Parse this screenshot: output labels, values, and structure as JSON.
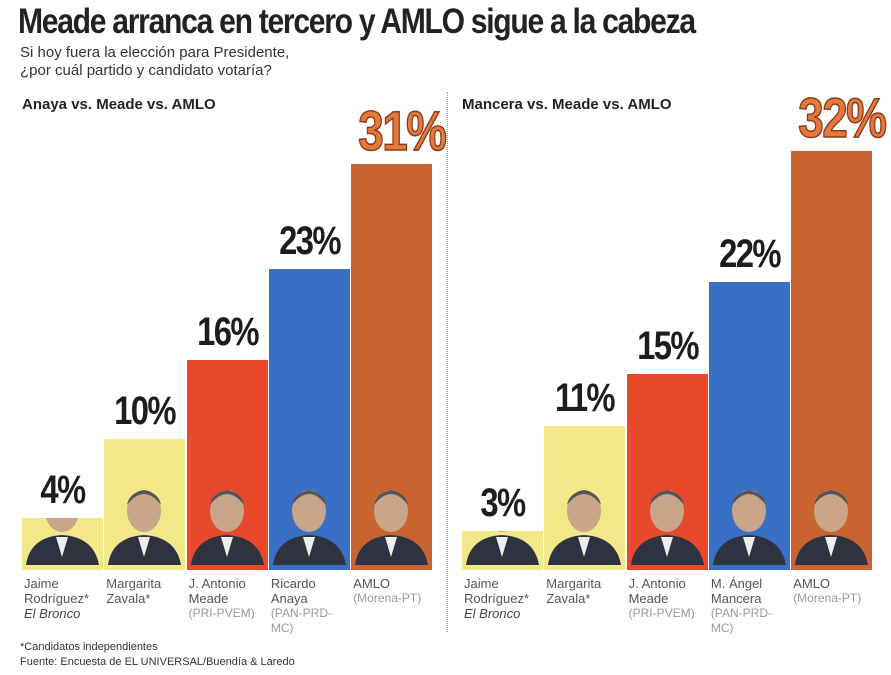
{
  "title": "Meade arranca en tercero y AMLO sigue a la cabeza",
  "subtitle": [
    "Si hoy fuera la elección para Presidente,",
    "¿por cuál partido y candidato votaría?"
  ],
  "footnote": "*Candidatos independientes",
  "source": "Fuente: Encuesta de EL UNIVERSAL/Buendía & Laredo",
  "chart_data": [
    {
      "type": "bar",
      "title": "Anaya vs. Meade vs. AMLO",
      "categories": [
        "Jaime Rodríguez*",
        "Margarita Zavala*",
        "J. Antonio Meade",
        "Ricardo Anaya",
        "AMLO"
      ],
      "parties": [
        "El Bronco",
        null,
        "(PRI-PVEM)",
        "(PAN-PRD-MC)",
        "(Morena-PT)"
      ],
      "values": [
        4,
        10,
        16,
        23,
        31
      ],
      "value_labels": [
        "4%",
        "10%",
        "16%",
        "23%",
        "31%"
      ],
      "colors": [
        "#f2e88a",
        "#f2e88a",
        "#e8482b",
        "#3a6fc6",
        "#c9632f"
      ]
    },
    {
      "type": "bar",
      "title": "Mancera vs. Meade vs. AMLO",
      "categories": [
        "Jaime Rodríguez*",
        "Margarita Zavala*",
        "J. Antonio Meade",
        "M. Ángel Mancera",
        "AMLO"
      ],
      "parties": [
        "El Bronco",
        null,
        "(PRI-PVEM)",
        "(PAN-PRD-MC)",
        "(Morena-PT)"
      ],
      "values": [
        3,
        11,
        15,
        22,
        32
      ],
      "value_labels": [
        "3%",
        "11%",
        "15%",
        "22%",
        "32%"
      ],
      "colors": [
        "#f2e88a",
        "#f2e88a",
        "#e8482b",
        "#3a6fc6",
        "#c9632f"
      ]
    }
  ]
}
